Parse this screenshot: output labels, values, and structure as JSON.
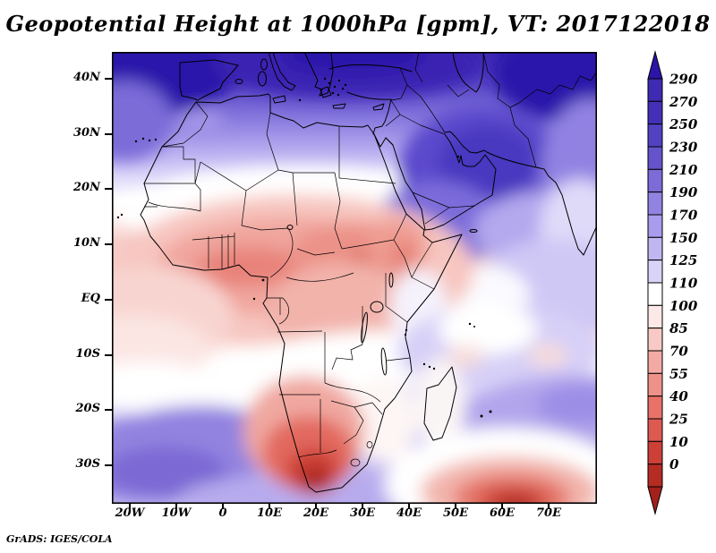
{
  "title": "Geopotential Height at 1000hPa [gpm], VT: 2017122018",
  "attribution": "GrADS: IGES/COLA",
  "colors": {
    "background": "#ffffff",
    "frame": "#000000",
    "text": "#000000"
  },
  "chart_data": {
    "type": "heatmap",
    "title": "Geopotential Height at 1000hPa [gpm], VT: 2017122018",
    "variable": "Geopotential Height",
    "level": "1000hPa",
    "units": "gpm",
    "valid_time": "2017122018",
    "extent": {
      "lon_min": -24,
      "lon_max": 80.5,
      "lat_min": -37,
      "lat_max": 45
    },
    "x_ticks": [
      "20W",
      "10W",
      "0",
      "10E",
      "20E",
      "30E",
      "40E",
      "50E",
      "60E",
      "70E"
    ],
    "y_ticks": [
      "40N",
      "30N",
      "20N",
      "10N",
      "EQ",
      "10S",
      "20S",
      "30S"
    ],
    "colorbar": {
      "levels": [
        0,
        10,
        25,
        40,
        55,
        70,
        85,
        100,
        110,
        125,
        150,
        170,
        190,
        210,
        230,
        250,
        270,
        290
      ],
      "segment_colors": [
        "#b52c24",
        "#cc4038",
        "#dd5a52",
        "#e87168",
        "#ee9289",
        "#f3aaa4",
        "#f8cac6",
        "#fce8e6",
        "#ffffff",
        "#d9d3f8",
        "#c0b6f2",
        "#a99cec",
        "#9183e2",
        "#7c6cd8",
        "#6553cc",
        "#5242c2",
        "#4430b6",
        "#3e2bb2"
      ],
      "below_min_color": "#a2211b",
      "above_max_color": "#2e13a8"
    },
    "read_values": [
      {
        "region": "Mediterranean / Europe / NE corner (Asia)",
        "approx_gpm": "250-290+"
      },
      {
        "region": "Arabian Peninsula closed high",
        "approx_gpm": "230-250"
      },
      {
        "region": "Sahara white belt near 20N",
        "approx_gpm": "110-125"
      },
      {
        "region": "West/Central Africa minimum belt 5-12N",
        "approx_gpm": "40-70"
      },
      {
        "region": "Equatorial Atlantic",
        "approx_gpm": "85-100"
      },
      {
        "region": "South Atlantic high lobe near 30S 10W",
        "approx_gpm": "170-210"
      },
      {
        "region": "Interior South Africa deep minimum near 31S 22E",
        "approx_gpm": "0-25"
      },
      {
        "region": "SW Indian Ocean low at bottom edge near 36S 60E",
        "approx_gpm": "10-40"
      },
      {
        "region": "Indian Ocean east of Madagascar",
        "approx_gpm": "125-170"
      }
    ]
  }
}
